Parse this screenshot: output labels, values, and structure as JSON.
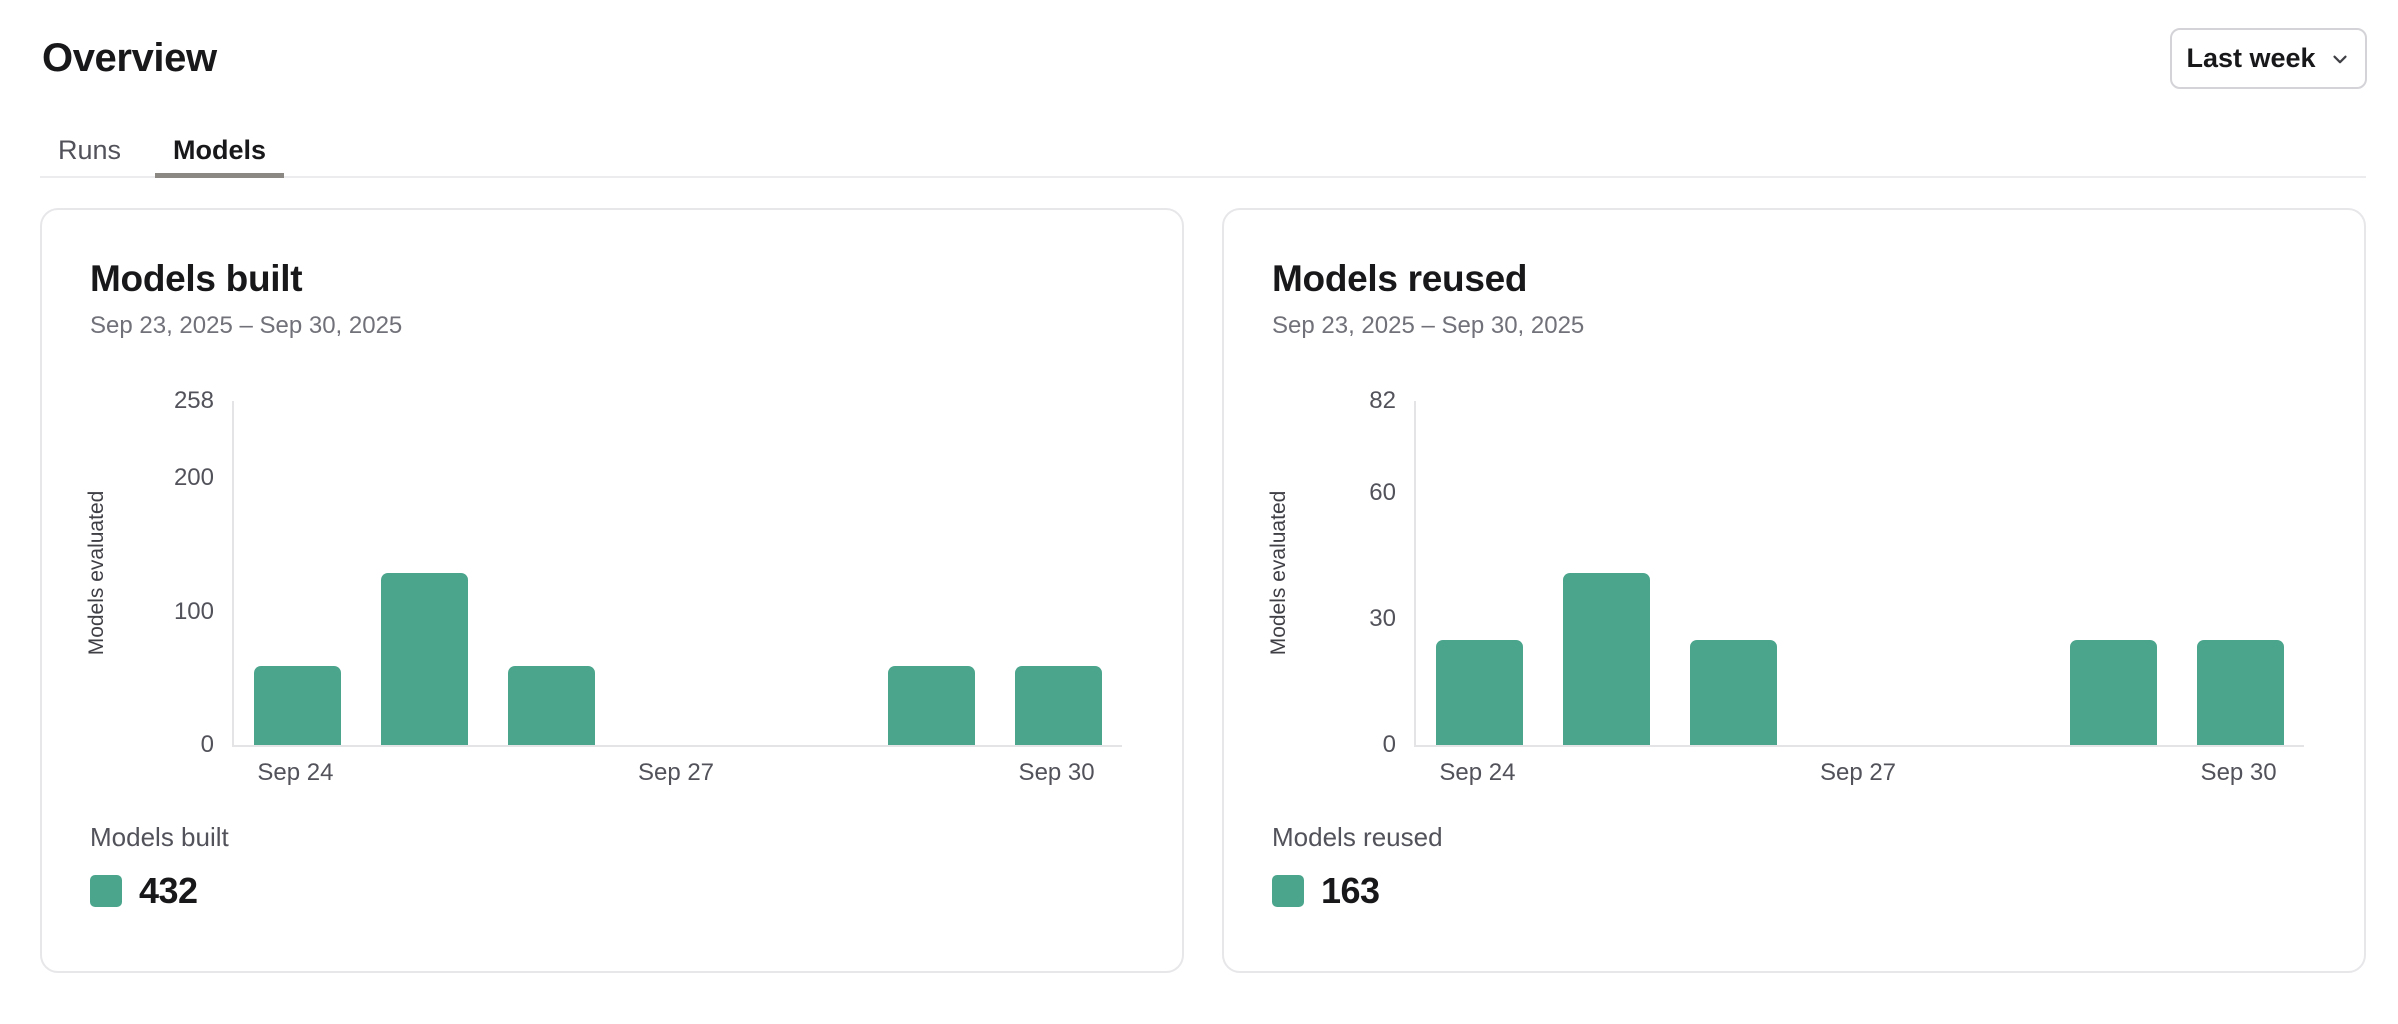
{
  "page_title": "Overview",
  "period_selector": {
    "label": "Last week",
    "icon": "chevron-down-icon"
  },
  "tabs": [
    {
      "label": "Runs",
      "active": false
    },
    {
      "label": "Models",
      "active": true
    }
  ],
  "colors": {
    "bar_green": "#4aa58c",
    "active_tab_underline": "#8b8783",
    "card_border": "#e7e7ea",
    "axis_line": "#e4e4e7",
    "muted_text": "#52525b"
  },
  "chart_data": [
    {
      "type": "bar",
      "title": "Models built",
      "subtitle": "Sep 23, 2025 – Sep 30, 2025",
      "ylabel": "Models evaluated",
      "categories": [
        "Sep 24",
        "Sep 25",
        "Sep 26",
        "Sep 27",
        "Sep 28",
        "Sep 29",
        "Sep 30"
      ],
      "values": [
        59,
        129,
        59,
        0,
        0,
        59,
        59
      ],
      "x_tick_labels": [
        "Sep 24",
        "Sep 27",
        "Sep 30"
      ],
      "y_ticks": [
        0,
        100,
        200,
        258
      ],
      "ylim": [
        0,
        258
      ],
      "grid": false,
      "legend_position": "bottom-left",
      "legend_label": "Models built",
      "legend_total": "432",
      "bar_color": "#4aa58c"
    },
    {
      "type": "bar",
      "title": "Models reused",
      "subtitle": "Sep 23, 2025 – Sep 30, 2025",
      "ylabel": "Models evaluated",
      "categories": [
        "Sep 24",
        "Sep 25",
        "Sep 26",
        "Sep 27",
        "Sep 28",
        "Sep 29",
        "Sep 30"
      ],
      "values": [
        25,
        41,
        25,
        0,
        0,
        25,
        25
      ],
      "x_tick_labels": [
        "Sep 24",
        "Sep 27",
        "Sep 30"
      ],
      "y_ticks": [
        0,
        30,
        60,
        82
      ],
      "ylim": [
        0,
        82
      ],
      "grid": false,
      "legend_position": "bottom-left",
      "legend_label": "Models reused",
      "legend_total": "163",
      "bar_color": "#4aa58c"
    }
  ]
}
